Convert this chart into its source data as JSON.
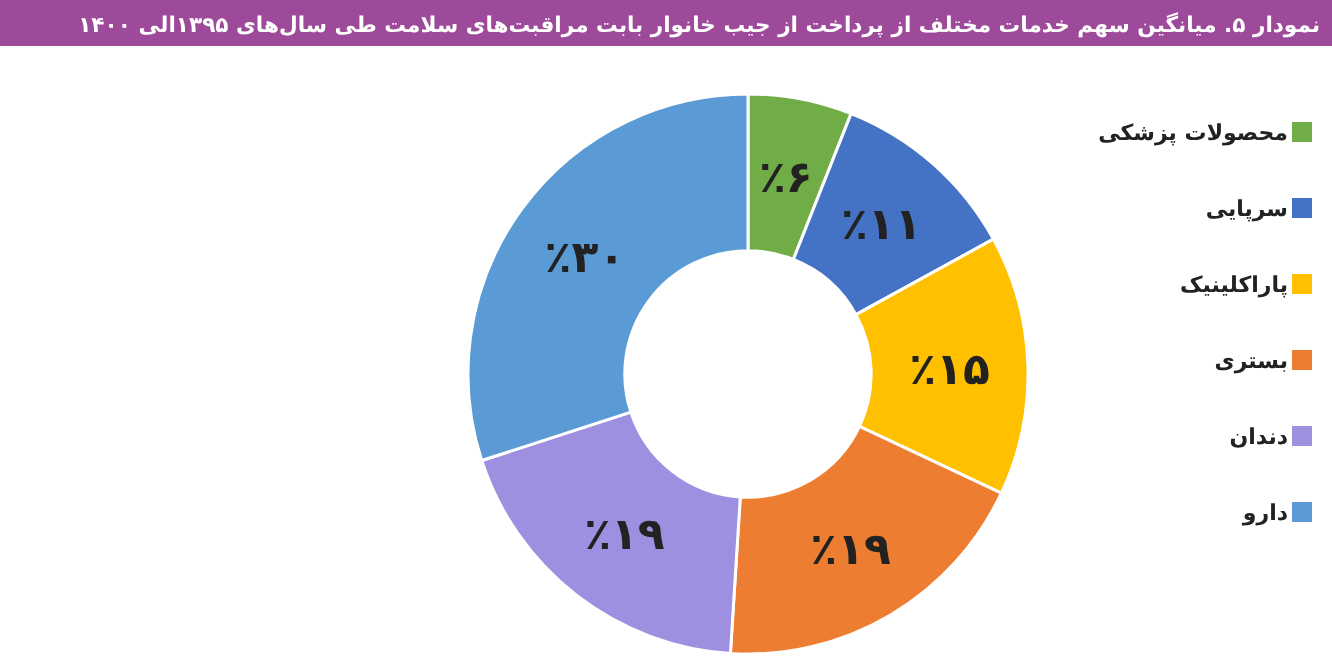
{
  "chart_data": {
    "type": "donut",
    "title": "نمودار ۵. میانگین سهم خدمات مختلف از پرداخت از جیب خانوار بابت مراقبت‌های سلامت طی سال‌های ۱۳۹۵الی ۱۴۰۰",
    "categories": [
      "محصولات پزشکی",
      "سرپایی",
      "پاراکلینیک",
      "بستری",
      "دندان",
      "دارو"
    ],
    "values": [
      6,
      11,
      15,
      19,
      19,
      30
    ],
    "colors": [
      "#70ad47",
      "#4472c4",
      "#ffc000",
      "#ed7d31",
      "#9e8fe0",
      "#5b9bd5"
    ],
    "value_labels": [
      "٪۶",
      "٪۱۱",
      "٪۱۵",
      "٪۱۹",
      "٪۱۹",
      "٪۳۰"
    ],
    "legend": "right"
  }
}
